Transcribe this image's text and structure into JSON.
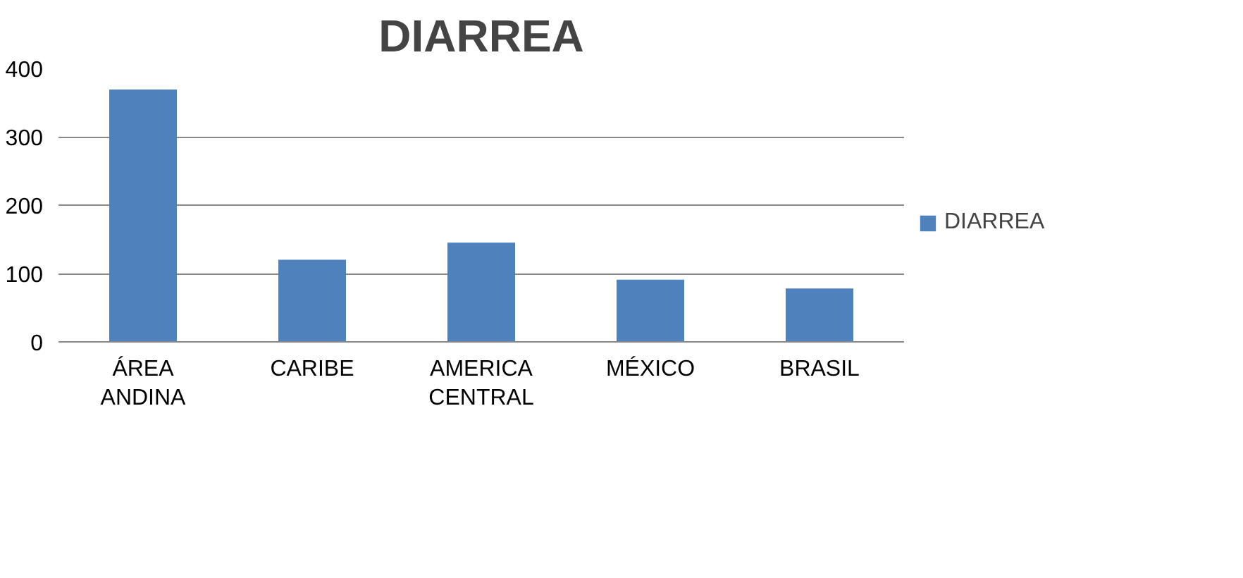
{
  "chart_data": {
    "type": "bar",
    "title": "DIARREA",
    "categories": [
      "ÁREA ANDINA",
      "CARIBE",
      "AMERICA CENTRAL",
      "MÉXICO",
      "BRASIL"
    ],
    "series": [
      {
        "name": "DIARREA",
        "color": "#4f81bd",
        "values": [
          369,
          120,
          145,
          91,
          78
        ]
      }
    ],
    "ylim": [
      0,
      400
    ],
    "yticks": [
      0,
      100,
      200,
      300,
      400
    ],
    "grid": "y",
    "legend": "right"
  }
}
